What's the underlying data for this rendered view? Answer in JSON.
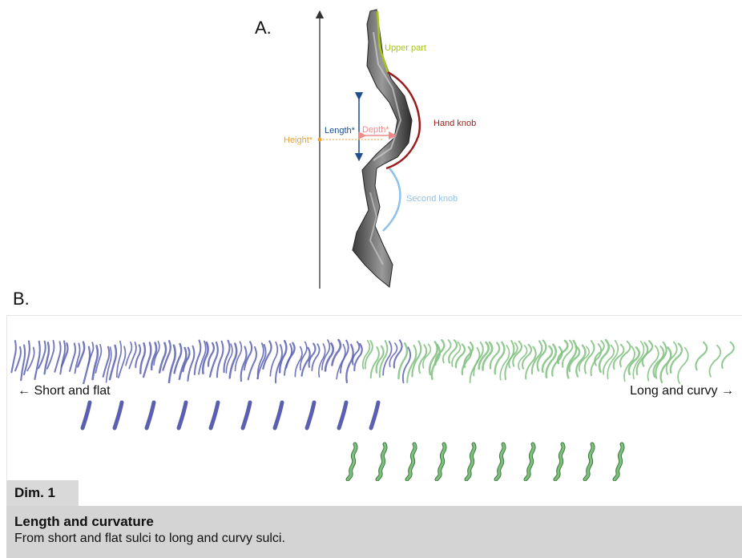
{
  "panel_a": {
    "letter": "A.",
    "labels": {
      "upper_part": "Upper part",
      "hand_knob": "Hand knob",
      "second_knob": "Second knob",
      "length": "Length*",
      "depth": "Depth*",
      "height": "Height*"
    },
    "colors": {
      "upper_part": "#a7c61a",
      "hand_knob": "#9b1c1c",
      "second_knob": "#8fc2ea",
      "length": "#1f4e8c",
      "depth": "#f08a8a",
      "height": "#f0a030"
    }
  },
  "panel_b": {
    "letter": "B.",
    "left_label": "← Short and flat",
    "right_label": "Long and curvy →",
    "colors": {
      "short_flat": "#5a5fb0",
      "long_curvy": "#7fbf7f"
    },
    "dimension": {
      "tab": "Dim. 1",
      "title": "Length and curvature",
      "description": "From short and flat sulci to long and curvy sulci."
    }
  }
}
